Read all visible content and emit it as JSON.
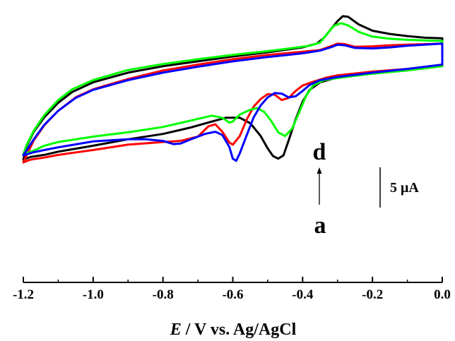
{
  "chart_data": {
    "type": "line",
    "xlabel": "E / V vs. Ag/AgCl",
    "xlabel_var": "E",
    "xlabel_rest": " / V vs. Ag/AgCl",
    "ylabel": "",
    "xlim": [
      -1.2,
      0.0
    ],
    "ylim": [
      -36,
      8
    ],
    "x_ticks": [
      -1.2,
      -1.0,
      -0.8,
      -0.6,
      -0.4,
      -0.2,
      0.0
    ],
    "x_tick_labels": [
      "-1.2",
      "-1.0",
      "-0.8",
      "-0.6",
      "-0.4",
      "-0.2",
      "0.0"
    ],
    "grid": false,
    "annotations": {
      "top_label": "d",
      "bottom_label": "a",
      "scale_bar_label": "5 μA",
      "scale_bar_value_uA": 5
    },
    "series": [
      {
        "color": "#000000",
        "cathodic": [
          [
            -1.2,
            -20.4
          ],
          [
            -1.18,
            -19.9
          ],
          [
            -1.14,
            -19.5
          ],
          [
            -1.1,
            -18.9
          ],
          [
            -1.0,
            -17.8
          ],
          [
            -0.9,
            -16.6
          ],
          [
            -0.8,
            -15.6
          ],
          [
            -0.72,
            -14.4
          ],
          [
            -0.66,
            -13.3
          ],
          [
            -0.62,
            -12.6
          ],
          [
            -0.58,
            -12.6
          ],
          [
            -0.55,
            -13.6
          ],
          [
            -0.52,
            -16.0
          ],
          [
            -0.5,
            -18.3
          ],
          [
            -0.485,
            -19.7
          ],
          [
            -0.47,
            -20.2
          ],
          [
            -0.455,
            -19.6
          ],
          [
            -0.44,
            -16.8
          ],
          [
            -0.42,
            -12.9
          ],
          [
            -0.4,
            -9.6
          ],
          [
            -0.38,
            -7.4
          ],
          [
            -0.35,
            -6.0
          ],
          [
            -0.3,
            -5.1
          ],
          [
            -0.2,
            -4.3
          ],
          [
            -0.1,
            -3.7
          ],
          [
            0.0,
            -2.9
          ]
        ],
        "anodic": [
          [
            0.0,
            2.2
          ],
          [
            -0.05,
            2.3
          ],
          [
            -0.1,
            2.6
          ],
          [
            -0.15,
            3.0
          ],
          [
            -0.2,
            3.6
          ],
          [
            -0.24,
            4.8
          ],
          [
            -0.27,
            6.2
          ],
          [
            -0.285,
            6.3
          ],
          [
            -0.3,
            5.4
          ],
          [
            -0.32,
            3.8
          ],
          [
            -0.34,
            2.2
          ],
          [
            -0.36,
            1.2
          ],
          [
            -0.4,
            0.5
          ],
          [
            -0.5,
            -0.4
          ],
          [
            -0.6,
            -1.2
          ],
          [
            -0.7,
            -2.1
          ],
          [
            -0.8,
            -3.0
          ],
          [
            -0.9,
            -4.2
          ],
          [
            -1.0,
            -6.0
          ],
          [
            -1.06,
            -7.8
          ],
          [
            -1.1,
            -9.8
          ],
          [
            -1.14,
            -12.5
          ],
          [
            -1.17,
            -15.2
          ],
          [
            -1.19,
            -17.8
          ],
          [
            -1.2,
            -20.4
          ]
        ]
      },
      {
        "color": "#ff0000",
        "cathodic": [
          [
            -1.2,
            -20.9
          ],
          [
            -1.18,
            -20.4
          ],
          [
            -1.14,
            -20.0
          ],
          [
            -1.1,
            -19.5
          ],
          [
            -1.0,
            -18.6
          ],
          [
            -0.9,
            -17.6
          ],
          [
            -0.8,
            -17.1
          ],
          [
            -0.75,
            -16.9
          ],
          [
            -0.7,
            -16.1
          ],
          [
            -0.67,
            -14.2
          ],
          [
            -0.65,
            -13.8
          ],
          [
            -0.63,
            -15.2
          ],
          [
            -0.61,
            -17.2
          ],
          [
            -0.6,
            -17.6
          ],
          [
            -0.58,
            -16.0
          ],
          [
            -0.56,
            -12.9
          ],
          [
            -0.54,
            -10.5
          ],
          [
            -0.52,
            -9.1
          ],
          [
            -0.5,
            -8.2
          ],
          [
            -0.48,
            -8.3
          ],
          [
            -0.46,
            -9.3
          ],
          [
            -0.44,
            -8.9
          ],
          [
            -0.42,
            -7.6
          ],
          [
            -0.4,
            -6.6
          ],
          [
            -0.37,
            -5.9
          ],
          [
            -0.33,
            -5.1
          ],
          [
            -0.3,
            -4.7
          ],
          [
            -0.2,
            -4.0
          ],
          [
            -0.1,
            -3.5
          ],
          [
            0.0,
            -2.8
          ]
        ],
        "anodic": [
          [
            0.0,
            1.2
          ],
          [
            -0.05,
            1.1
          ],
          [
            -0.1,
            1.0
          ],
          [
            -0.15,
            0.9
          ],
          [
            -0.2,
            0.7
          ],
          [
            -0.25,
            0.6
          ],
          [
            -0.28,
            1.1
          ],
          [
            -0.3,
            1.2
          ],
          [
            -0.32,
            0.7
          ],
          [
            -0.35,
            0.0
          ],
          [
            -0.4,
            -0.3
          ],
          [
            -0.5,
            -0.9
          ],
          [
            -0.6,
            -1.7
          ],
          [
            -0.7,
            -2.7
          ],
          [
            -0.8,
            -3.8
          ],
          [
            -0.9,
            -5.4
          ],
          [
            -1.0,
            -7.3
          ],
          [
            -1.05,
            -8.8
          ],
          [
            -1.1,
            -11.3
          ],
          [
            -1.14,
            -14.0
          ],
          [
            -1.17,
            -16.8
          ],
          [
            -1.19,
            -19.5
          ],
          [
            -1.2,
            -20.9
          ]
        ]
      },
      {
        "color": "#00ff00",
        "cathodic": [
          [
            -1.2,
            -19.4
          ],
          [
            -1.17,
            -18.7
          ],
          [
            -1.14,
            -17.8
          ],
          [
            -1.1,
            -17.1
          ],
          [
            -1.0,
            -16.1
          ],
          [
            -0.9,
            -15.3
          ],
          [
            -0.8,
            -14.3
          ],
          [
            -0.7,
            -12.8
          ],
          [
            -0.66,
            -12.2
          ],
          [
            -0.63,
            -12.6
          ],
          [
            -0.61,
            -13.5
          ],
          [
            -0.6,
            -13.3
          ],
          [
            -0.58,
            -12.0
          ],
          [
            -0.55,
            -11.1
          ],
          [
            -0.53,
            -10.8
          ],
          [
            -0.51,
            -11.5
          ],
          [
            -0.49,
            -13.2
          ],
          [
            -0.47,
            -15.3
          ],
          [
            -0.45,
            -16.0
          ],
          [
            -0.43,
            -14.6
          ],
          [
            -0.41,
            -11.6
          ],
          [
            -0.39,
            -8.5
          ],
          [
            -0.37,
            -6.6
          ],
          [
            -0.34,
            -5.6
          ],
          [
            -0.3,
            -5.2
          ],
          [
            -0.2,
            -4.4
          ],
          [
            -0.1,
            -3.8
          ],
          [
            0.0,
            -3.0
          ]
        ],
        "anodic": [
          [
            0.0,
            1.7
          ],
          [
            -0.05,
            1.8
          ],
          [
            -0.1,
            1.9
          ],
          [
            -0.15,
            2.1
          ],
          [
            -0.2,
            2.5
          ],
          [
            -0.24,
            3.4
          ],
          [
            -0.27,
            4.6
          ],
          [
            -0.29,
            5.0
          ],
          [
            -0.31,
            4.5
          ],
          [
            -0.33,
            3.0
          ],
          [
            -0.35,
            1.4
          ],
          [
            -0.38,
            0.8
          ],
          [
            -0.45,
            0.2
          ],
          [
            -0.5,
            -0.2
          ],
          [
            -0.6,
            -0.9
          ],
          [
            -0.7,
            -1.7
          ],
          [
            -0.8,
            -2.6
          ],
          [
            -0.9,
            -3.7
          ],
          [
            -1.0,
            -5.6
          ],
          [
            -1.06,
            -7.3
          ],
          [
            -1.1,
            -9.3
          ],
          [
            -1.14,
            -12.1
          ],
          [
            -1.17,
            -15.0
          ],
          [
            -1.19,
            -17.6
          ],
          [
            -1.2,
            -19.4
          ]
        ]
      },
      {
        "color": "#0000ff",
        "cathodic": [
          [
            -1.2,
            -19.6
          ],
          [
            -1.17,
            -19.0
          ],
          [
            -1.14,
            -18.6
          ],
          [
            -1.1,
            -18.1
          ],
          [
            -1.0,
            -17.0
          ],
          [
            -0.9,
            -16.6
          ],
          [
            -0.85,
            -16.6
          ],
          [
            -0.8,
            -16.9
          ],
          [
            -0.77,
            -17.5
          ],
          [
            -0.75,
            -17.4
          ],
          [
            -0.72,
            -16.6
          ],
          [
            -0.68,
            -15.6
          ],
          [
            -0.65,
            -15.2
          ],
          [
            -0.63,
            -15.8
          ],
          [
            -0.61,
            -18.0
          ],
          [
            -0.6,
            -20.2
          ],
          [
            -0.59,
            -20.6
          ],
          [
            -0.58,
            -19.2
          ],
          [
            -0.56,
            -15.8
          ],
          [
            -0.54,
            -12.5
          ],
          [
            -0.52,
            -10.3
          ],
          [
            -0.5,
            -8.8
          ],
          [
            -0.48,
            -8.0
          ],
          [
            -0.46,
            -8.1
          ],
          [
            -0.44,
            -8.8
          ],
          [
            -0.42,
            -8.6
          ],
          [
            -0.4,
            -7.6
          ],
          [
            -0.38,
            -6.5
          ],
          [
            -0.35,
            -5.6
          ],
          [
            -0.3,
            -5.0
          ],
          [
            -0.2,
            -4.2
          ],
          [
            -0.1,
            -3.5
          ],
          [
            0.0,
            -2.7
          ]
        ],
        "anodic": [
          [
            0.0,
            1.2
          ],
          [
            -0.05,
            1.0
          ],
          [
            -0.1,
            0.8
          ],
          [
            -0.15,
            0.5
          ],
          [
            -0.2,
            0.3
          ],
          [
            -0.25,
            0.4
          ],
          [
            -0.28,
            0.9
          ],
          [
            -0.3,
            1.0
          ],
          [
            -0.32,
            0.5
          ],
          [
            -0.35,
            -0.1
          ],
          [
            -0.4,
            -0.6
          ],
          [
            -0.5,
            -1.3
          ],
          [
            -0.6,
            -2.1
          ],
          [
            -0.7,
            -3.1
          ],
          [
            -0.8,
            -4.2
          ],
          [
            -0.9,
            -5.6
          ],
          [
            -1.0,
            -7.4
          ],
          [
            -1.05,
            -8.9
          ],
          [
            -1.1,
            -11.3
          ],
          [
            -1.14,
            -13.9
          ],
          [
            -1.17,
            -16.6
          ],
          [
            -1.19,
            -18.6
          ],
          [
            -1.2,
            -19.6
          ]
        ]
      }
    ]
  }
}
